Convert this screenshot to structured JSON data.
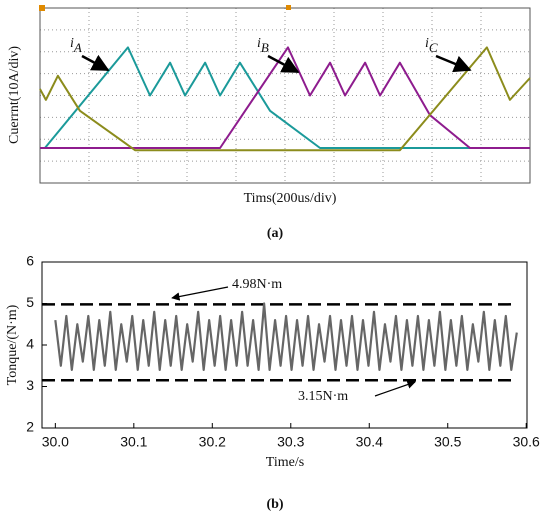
{
  "chart_data": [
    {
      "type": "line",
      "x_label": "Tims(200us/div)",
      "y_label": "Cuerrnt(10A/div)",
      "caption": "(a)",
      "xlim": [
        0,
        2000
      ],
      "ylim": [
        -16,
        64
      ],
      "grid": true,
      "annotations": [
        {
          "text": "i",
          "subscript": "A"
        },
        {
          "text": "i",
          "subscript": "B"
        },
        {
          "text": "i",
          "subscript": "C"
        }
      ],
      "series": [
        {
          "color": "#1b9a9a",
          "x": [
            0,
            20,
            359,
            449,
            531,
            592,
            674,
            735,
            816,
            939,
            1143,
            1918
          ],
          "values": [
            0,
            0,
            46,
            24,
            39,
            24,
            39,
            24,
            39,
            17,
            0,
            0
          ]
        },
        {
          "color": "#8e1c8e",
          "x": [
            0,
            735,
            1012,
            1102,
            1184,
            1245,
            1327,
            1388,
            1469,
            1592,
            1755,
            2000
          ],
          "values": [
            0,
            0,
            46,
            24,
            39,
            24,
            39,
            24,
            39,
            15,
            0,
            0
          ]
        },
        {
          "color": "#8c8c1c",
          "x": [
            0,
            24,
            73,
            163,
            388,
            1469,
            1824,
            1918,
            2000
          ],
          "values": [
            27,
            22,
            33,
            17,
            -1,
            -1,
            46,
            22,
            32
          ]
        }
      ]
    },
    {
      "type": "line",
      "x_label": "Time/s",
      "y_label": "Tonque/(N·m)",
      "caption": "(b)",
      "xlim": [
        29.983,
        30.601
      ],
      "ylim": [
        2,
        6
      ],
      "xticks": [
        {
          "value": 30,
          "label": "30.0"
        },
        30.1,
        30.2,
        30.3,
        30.4,
        30.5,
        30.6
      ],
      "yticks": [
        2,
        3,
        4,
        5,
        6
      ],
      "hlines": [
        {
          "value": 4.98,
          "label": "4.98N·m"
        },
        {
          "value": 3.15,
          "label": "3.15N·m"
        }
      ],
      "x": [
        30,
        30.007,
        30.014,
        30.021,
        30.028,
        30.035,
        30.042,
        30.049,
        30.056,
        30.063,
        30.07,
        30.077,
        30.084,
        30.091,
        30.098,
        30.105,
        30.112,
        30.119,
        30.126,
        30.133,
        30.14,
        30.147,
        30.154,
        30.161,
        30.168,
        30.175,
        30.182,
        30.189,
        30.196,
        30.203,
        30.21,
        30.217,
        30.224,
        30.231,
        30.238,
        30.245,
        30.252,
        30.259,
        30.266,
        30.273,
        30.28,
        30.287,
        30.294,
        30.301,
        30.308,
        30.315,
        30.322,
        30.329,
        30.336,
        30.343,
        30.35,
        30.357,
        30.364,
        30.371,
        30.378,
        30.385,
        30.392,
        30.399,
        30.406,
        30.413,
        30.42,
        30.427,
        30.434,
        30.441,
        30.448,
        30.455,
        30.462,
        30.469,
        30.476,
        30.483,
        30.49,
        30.497,
        30.504,
        30.511,
        30.518,
        30.525,
        30.532,
        30.539,
        30.546,
        30.553,
        30.56,
        30.567,
        30.574,
        30.581,
        30.588
      ],
      "series": [
        {
          "color": "#666666",
          "values": [
            4.6,
            3.5,
            4.7,
            3.4,
            4.5,
            3.6,
            4.7,
            3.4,
            4.6,
            3.5,
            4.8,
            3.4,
            4.5,
            3.6,
            4.7,
            3.4,
            4.6,
            3.5,
            4.8,
            3.4,
            4.6,
            3.5,
            4.7,
            3.4,
            4.5,
            3.6,
            4.8,
            3.4,
            4.6,
            3.5,
            4.7,
            3.4,
            4.6,
            3.5,
            4.8,
            3.5,
            4.6,
            3.4,
            5.0,
            3.4,
            4.6,
            3.5,
            4.7,
            3.4,
            4.6,
            3.5,
            4.7,
            3.4,
            4.5,
            3.6,
            4.7,
            3.4,
            4.6,
            3.5,
            4.7,
            3.4,
            4.6,
            3.5,
            4.8,
            3.4,
            4.5,
            3.6,
            4.7,
            3.4,
            4.6,
            3.5,
            4.7,
            3.4,
            4.6,
            3.5,
            4.8,
            3.4,
            4.6,
            3.5,
            4.7,
            3.4,
            4.5,
            3.6,
            4.8,
            3.4,
            4.6,
            3.5,
            4.7,
            3.4,
            4.3
          ]
        }
      ]
    }
  ]
}
